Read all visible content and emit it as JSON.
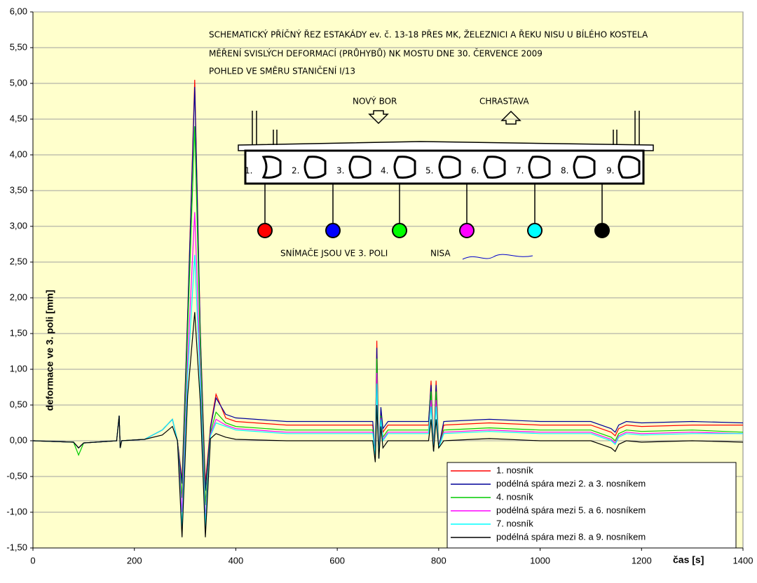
{
  "chart_data": {
    "type": "line",
    "x_label": "čas [s]",
    "y_label": "deformace ve 3. poli [mm]",
    "annotations": [
      "SCHEMATICKÝ PŘÍČNÝ ŘEZ ESTAKÁDY ev. č. 13-18 PŘES MK, ŽELEZNICI A ŘEKU NISU U BÍLÉHO KOSTELA",
      "MĚŘENÍ SVISLÝCH DEFORMACÍ (PRŮHYBŮ) NK MOSTU DNE 30. ČERVENCE 2009",
      "POHLED VE SMĚRU STANIČENÍ I/13",
      "NOVÝ BOR",
      "CHRASTAVA",
      "1.",
      "2.",
      "3.",
      "4.",
      "5.",
      "6.",
      "7.",
      "8.",
      "9.",
      "SNÍMAČE JSOU VE 3. POLI",
      "NISA"
    ],
    "xlim": [
      0,
      1400
    ],
    "xticks": [
      0,
      200,
      400,
      600,
      800,
      1000,
      1200,
      1400
    ],
    "ylim": [
      -1.5,
      6
    ],
    "yticks": [
      {
        "value": -1.5,
        "label": "-1,50"
      },
      {
        "value": -1,
        "label": "-1,00"
      },
      {
        "value": -0.5,
        "label": "-0,50"
      },
      {
        "value": 0,
        "label": "0,00"
      },
      {
        "value": 0.5,
        "label": "0,50"
      },
      {
        "value": 1,
        "label": "1,00"
      },
      {
        "value": 1.5,
        "label": "1,50"
      },
      {
        "value": 2,
        "label": "2,00"
      },
      {
        "value": 2.5,
        "label": "2,50"
      },
      {
        "value": 3,
        "label": "3,00"
      },
      {
        "value": 3.5,
        "label": "3,50"
      },
      {
        "value": 4,
        "label": "4,00"
      },
      {
        "value": 4.5,
        "label": "4,50"
      },
      {
        "value": 5,
        "label": "5,00"
      },
      {
        "value": 5.5,
        "label": "5,50"
      },
      {
        "value": 6,
        "label": "6,00"
      }
    ],
    "grid": true,
    "legend": "lower right",
    "x": [
      0,
      80,
      90,
      100,
      165,
      170,
      172,
      175,
      220,
      255,
      275,
      285,
      294,
      305,
      319,
      330,
      340,
      350,
      361,
      380,
      400,
      500,
      600,
      670,
      675,
      678,
      682,
      686,
      690,
      700,
      780,
      785,
      790,
      795,
      800,
      810,
      900,
      1000,
      1100,
      1140,
      1148,
      1155,
      1170,
      1200,
      1300,
      1400
    ],
    "series": [
      {
        "name": "1. nosník",
        "color": "#ff0000",
        "values": [
          0,
          -0.02,
          -0.1,
          -0.03,
          0,
          0.35,
          -0.1,
          0,
          0.02,
          0.15,
          0.3,
          0,
          -0.55,
          1.77,
          5.05,
          1.52,
          -0.6,
          0.2,
          0.65,
          0.32,
          0.27,
          0.22,
          0.22,
          0.22,
          -0.2,
          1.4,
          -0.25,
          0.42,
          0.12,
          0.22,
          0.22,
          0.84,
          -0.15,
          0.84,
          -0.1,
          0.22,
          0.25,
          0.22,
          0.22,
          0.12,
          0.07,
          0.17,
          0.22,
          0.2,
          0.22,
          0.22
        ]
      },
      {
        "name": "podélná spára mezi 2. a 3. nosníkem",
        "color": "#000099",
        "values": [
          0,
          -0.02,
          -0.1,
          -0.03,
          0,
          0.35,
          -0.1,
          0,
          0.02,
          0.15,
          0.3,
          0,
          -0.6,
          1.73,
          4.95,
          1.49,
          -0.7,
          0.18,
          0.6,
          0.37,
          0.32,
          0.27,
          0.27,
          0.27,
          -0.2,
          1.3,
          -0.25,
          0.47,
          0.17,
          0.27,
          0.27,
          0.78,
          -0.15,
          0.78,
          -0.1,
          0.27,
          0.3,
          0.27,
          0.27,
          0.17,
          0.12,
          0.22,
          0.27,
          0.25,
          0.27,
          0.25
        ]
      },
      {
        "name": "4. nosník",
        "color": "#00cc00",
        "values": [
          0,
          -0.02,
          -0.2,
          -0.03,
          0,
          0.35,
          -0.1,
          0,
          0.02,
          0.15,
          0.3,
          0,
          -0.8,
          1.54,
          4.4,
          1.32,
          -0.9,
          0.12,
          0.4,
          0.25,
          0.2,
          0.15,
          0.15,
          0.15,
          -0.2,
          1.15,
          -0.25,
          0.35,
          0.05,
          0.15,
          0.15,
          0.69,
          -0.15,
          0.69,
          -0.1,
          0.15,
          0.18,
          0.15,
          0.15,
          0.05,
          0,
          0.1,
          0.15,
          0.13,
          0.15,
          0.12
        ]
      },
      {
        "name": "podélná spára mezi 5. a 6. nosníkem",
        "color": "#ff00ff",
        "values": [
          0,
          -0.02,
          -0.1,
          -0.03,
          0,
          0.35,
          -0.1,
          0,
          0.02,
          0.15,
          0.3,
          0,
          -1.0,
          1.12,
          3.2,
          0.96,
          -1.1,
          0.09,
          0.3,
          0.22,
          0.17,
          0.12,
          0.12,
          0.12,
          -0.2,
          0.95,
          -0.25,
          0.32,
          0.02,
          0.12,
          0.12,
          0.57,
          -0.15,
          0.57,
          -0.1,
          0.12,
          0.15,
          0.12,
          0.12,
          0.02,
          -0.03,
          0.07,
          0.12,
          0.1,
          0.12,
          0.1
        ]
      },
      {
        "name": "7. nosník",
        "color": "#00ffff",
        "values": [
          0,
          -0.02,
          -0.1,
          -0.03,
          0,
          0.35,
          -0.1,
          0,
          0.02,
          0.15,
          0.3,
          0,
          -1.2,
          0.91,
          2.6,
          0.78,
          -1.2,
          0.07,
          0.25,
          0.2,
          0.15,
          0.1,
          0.1,
          0.1,
          -0.2,
          0.8,
          -0.25,
          0.3,
          0,
          0.1,
          0.1,
          0.48,
          -0.15,
          0.48,
          -0.1,
          0.1,
          0.13,
          0.1,
          0.1,
          0,
          -0.05,
          0.05,
          0.1,
          0.08,
          0.1,
          0.1
        ]
      },
      {
        "name": "podélná spára mezi 8. a 9. nosníkem",
        "color": "#000000",
        "values": [
          0,
          -0.02,
          -0.1,
          -0.03,
          0,
          0.35,
          -0.1,
          0,
          0.02,
          0.08,
          0.2,
          0,
          -1.35,
          0.63,
          1.8,
          0.54,
          -1.35,
          0.03,
          0.1,
          0.05,
          0.02,
          0,
          0,
          0,
          -0.3,
          0.5,
          -0.25,
          0.2,
          -0.1,
          0,
          0,
          0.3,
          -0.15,
          0.3,
          -0.1,
          0,
          0.03,
          0,
          0,
          -0.1,
          -0.15,
          -0.05,
          0,
          -0.02,
          0,
          -0.02
        ]
      }
    ]
  }
}
